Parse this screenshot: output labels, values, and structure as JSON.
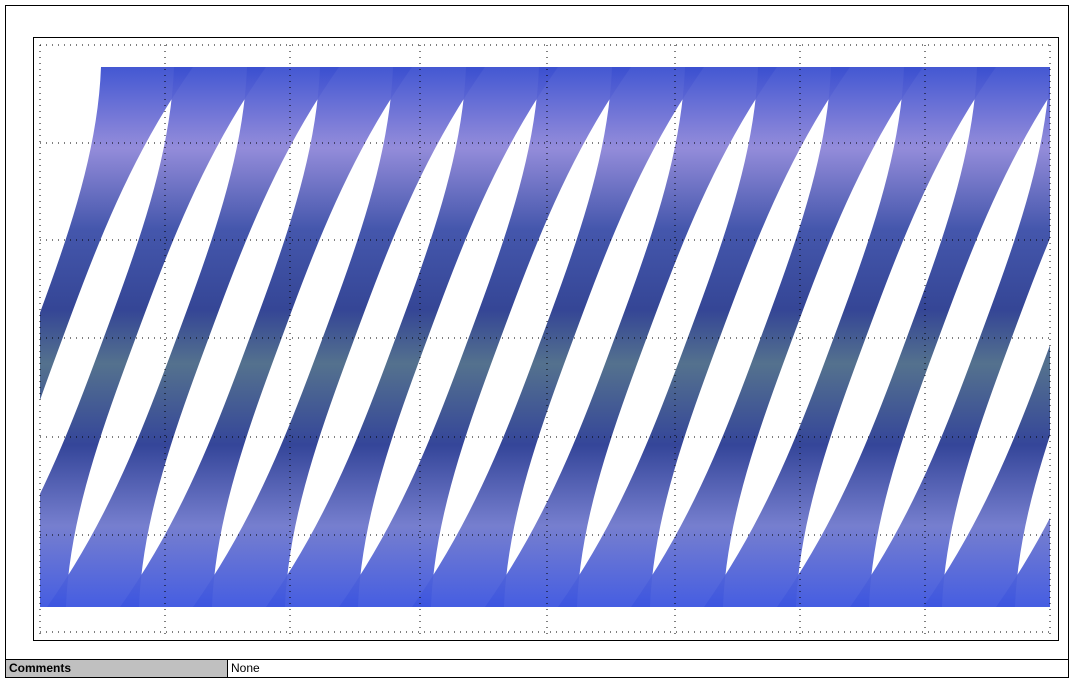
{
  "table": {
    "rows": [
      [
        "Comments",
        "None"
      ]
    ]
  }
}
